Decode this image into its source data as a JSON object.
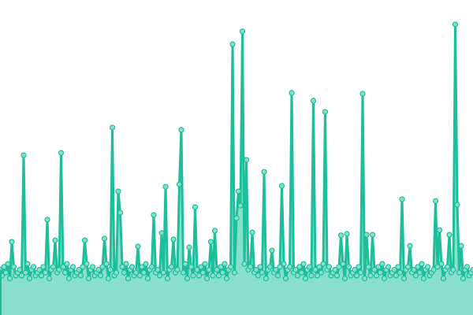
{
  "chart_data": {
    "type": "area",
    "title": "",
    "xlabel": "",
    "ylabel": "",
    "axes_visible": false,
    "grid": false,
    "legend": "none",
    "ylim": [
      0,
      100
    ],
    "markers": true,
    "colors": {
      "line": "#1dbf9a",
      "fill": "#88e0cc",
      "marker_fill": "#88e0cc",
      "marker_stroke": "#1dbf9a"
    },
    "values": [
      15,
      13,
      16,
      14,
      17,
      12,
      24.6,
      16,
      13,
      14,
      15,
      13,
      54.3,
      14,
      17,
      12,
      15,
      16,
      13,
      14,
      15,
      13,
      16,
      14,
      32.2,
      12,
      15,
      16,
      25.1,
      14,
      15,
      55.1,
      16,
      14,
      17,
      12,
      15,
      16,
      13,
      14,
      15,
      13,
      16,
      25.1,
      17,
      12,
      15,
      16,
      13,
      14,
      15,
      13,
      16,
      25.7,
      17,
      12,
      15,
      63.8,
      13,
      14,
      41.9,
      34.6,
      16,
      14,
      17,
      12,
      15,
      16,
      13,
      14,
      23,
      13,
      16,
      14,
      17,
      12,
      15,
      16,
      33.8,
      14,
      15,
      13,
      27.6,
      14,
      43.5,
      12,
      15,
      16,
      25.4,
      14,
      15,
      44.3,
      63,
      14,
      17,
      12,
      22.7,
      16,
      13,
      36.5,
      15,
      13,
      16,
      14,
      17,
      12,
      15,
      24.6,
      13,
      28.4,
      15,
      13,
      16,
      14,
      17,
      12,
      15,
      16,
      92.4,
      14,
      32.7,
      41.9,
      37,
      96.8,
      17,
      52.7,
      15,
      16,
      27.8,
      14,
      15,
      13,
      16,
      14,
      48.6,
      12,
      15,
      16,
      21.6,
      14,
      15,
      13,
      16,
      43.8,
      17,
      12,
      15,
      16,
      75.7,
      14,
      15,
      13,
      16,
      14,
      17,
      12,
      15,
      16,
      13,
      73,
      15,
      13,
      16,
      14,
      17,
      69.2,
      15,
      16,
      13,
      14,
      15,
      13,
      16,
      26.8,
      17,
      12,
      27.3,
      16,
      13,
      14,
      15,
      13,
      16,
      14,
      75.4,
      12,
      27,
      16,
      13,
      27,
      15,
      13,
      16,
      14,
      17,
      12,
      15,
      16,
      13,
      14,
      15,
      13,
      16,
      14,
      39.2,
      12,
      15,
      16,
      23.2,
      14,
      15,
      13,
      16,
      14,
      17,
      12,
      15,
      16,
      13,
      14,
      15,
      38.6,
      16,
      28.6,
      17,
      12,
      15,
      16,
      27,
      14,
      15,
      99.2,
      37.3,
      14,
      23.2,
      12,
      15,
      16,
      13,
      14,
      15
    ]
  }
}
